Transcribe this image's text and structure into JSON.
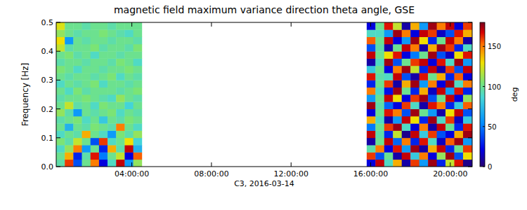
{
  "chart_data": {
    "type": "heatmap",
    "title": "magnetic field maximum variance direction theta angle, GSE",
    "x_label": "C3, 2016-03-14",
    "y_label": "Frequency [Hz]",
    "xlim": [
      0.2,
      21.1
    ],
    "ylim": [
      0,
      0.5
    ],
    "xticks": [
      {
        "value": 4,
        "label": "04:00:00"
      },
      {
        "value": 8,
        "label": "08:00:00"
      },
      {
        "value": 12,
        "label": "12:00:00"
      },
      {
        "value": 16,
        "label": "16:00:00"
      },
      {
        "value": 20,
        "label": "20:00:00"
      }
    ],
    "yticks": [
      {
        "value": 0,
        "label": "0.0"
      },
      {
        "value": 0.1,
        "label": "0.1"
      },
      {
        "value": 0.2,
        "label": "0.2"
      },
      {
        "value": 0.3,
        "label": "0.3"
      },
      {
        "value": 0.4,
        "label": "0.4"
      },
      {
        "value": 0.5,
        "label": "0.5"
      }
    ],
    "y_edges": [
      0,
      0.025,
      0.05,
      0.075,
      0.1,
      0.125,
      0.15,
      0.175,
      0.2,
      0.225,
      0.25,
      0.275,
      0.3,
      0.325,
      0.35,
      0.375,
      0.4,
      0.425,
      0.45,
      0.475,
      0.5
    ],
    "segments": [
      {
        "x_edges": [
          0.2,
          0.63,
          1.06,
          1.49,
          1.92,
          2.35,
          2.78,
          3.21,
          3.64,
          4.07,
          4.5
        ],
        "values": [
          [
            95,
            160,
            40,
            100,
            150,
            20,
            90,
            170,
            60,
            110
          ],
          [
            100,
            140,
            30,
            95,
            165,
            50,
            100,
            120,
            20,
            155
          ],
          [
            90,
            110,
            150,
            60,
            100,
            30,
            140,
            95,
            170,
            70
          ],
          [
            105,
            95,
            120,
            100,
            40,
            160,
            90,
            100,
            130,
            85
          ],
          [
            90,
            100,
            95,
            140,
            100,
            90,
            60,
            105,
            95,
            110
          ],
          [
            100,
            70,
            100,
            95,
            105,
            100,
            95,
            150,
            100,
            90
          ],
          [
            95,
            100,
            105,
            90,
            100,
            80,
            100,
            95,
            105,
            100
          ],
          [
            110,
            95,
            60,
            100,
            95,
            100,
            105,
            90,
            100,
            95
          ],
          [
            100,
            120,
            95,
            100,
            90,
            105,
            100,
            100,
            85,
            100
          ],
          [
            95,
            100,
            100,
            105,
            100,
            95,
            90,
            110,
            100,
            95
          ],
          [
            100,
            90,
            105,
            95,
            100,
            100,
            100,
            95,
            100,
            105
          ],
          [
            90,
            100,
            95,
            100,
            105,
            90,
            100,
            100,
            95,
            100
          ],
          [
            100,
            95,
            100,
            100,
            95,
            100,
            105,
            90,
            100,
            95
          ],
          [
            105,
            100,
            90,
            100,
            100,
            95,
            100,
            100,
            105,
            100
          ],
          [
            95,
            100,
            100,
            95,
            100,
            100,
            95,
            105,
            100,
            90
          ],
          [
            100,
            105,
            95,
            100,
            90,
            100,
            100,
            95,
            100,
            100
          ],
          [
            120,
            95,
            100,
            100,
            105,
            95,
            100,
            100,
            95,
            105
          ],
          [
            130,
            60,
            100,
            95,
            100,
            100,
            95,
            100,
            100,
            95
          ],
          [
            110,
            100,
            95,
            100,
            100,
            105,
            100,
            95,
            90,
            100
          ],
          [
            125,
            100,
            100,
            95,
            100,
            100,
            95,
            100,
            100,
            100
          ]
        ]
      },
      {
        "x_edges": [
          15.8,
          16.24,
          16.68,
          17.12,
          17.56,
          18.0,
          18.44,
          18.88,
          19.32,
          19.76,
          20.2,
          20.64,
          21.1
        ],
        "values": [
          [
            20,
            170,
            90,
            140,
            10,
            160,
            60,
            175,
            30,
            120,
            165,
            5
          ],
          [
            160,
            40,
            100,
            10,
            170,
            80,
            150,
            20,
            110,
            175,
            40,
            130
          ],
          [
            95,
            150,
            20,
            165,
            60,
            175,
            10,
            140,
            170,
            30,
            100,
            160
          ],
          [
            10,
            100,
            170,
            45,
            150,
            30,
            165,
            90,
            15,
            155,
            175,
            60
          ],
          [
            170,
            95,
            30,
            120,
            5,
            170,
            80,
            160,
            40,
            20,
            140,
            175
          ],
          [
            50,
            100,
            160,
            175,
            90,
            20,
            150,
            10,
            170,
            100,
            30,
            165
          ],
          [
            140,
            90,
            10,
            60,
            170,
            130,
            30,
            175,
            90,
            160,
            15,
            80
          ],
          [
            20,
            100,
            165,
            150,
            40,
            175,
            100,
            60,
            10,
            130,
            170,
            40
          ],
          [
            175,
            95,
            45,
            20,
            160,
            90,
            10,
            165,
            150,
            30,
            80,
            155
          ],
          [
            60,
            100,
            170,
            130,
            20,
            160,
            175,
            40,
            100,
            170,
            20,
            110
          ],
          [
            150,
            90,
            25,
            175,
            100,
            30,
            140,
            15,
            170,
            60,
            165,
            30
          ],
          [
            30,
            100,
            160,
            10,
            140,
            175,
            60,
            150,
            20,
            175,
            90,
            150
          ],
          [
            165,
            95,
            90,
            170,
            40,
            10,
            165,
            100,
            140,
            30,
            155,
            20
          ],
          [
            80,
            100,
            20,
            150,
            175,
            120,
            30,
            170,
            10,
            160,
            40,
            170
          ],
          [
            10,
            90,
            175,
            40,
            100,
            160,
            170,
            20,
            165,
            90,
            175,
            60
          ],
          [
            170,
            100,
            130,
            165,
            20,
            50,
            100,
            175,
            40,
            15,
            130,
            165
          ],
          [
            40,
            95,
            10,
            100,
            170,
            150,
            10,
            140,
            175,
            160,
            30,
            90
          ],
          [
            155,
            100,
            170,
            20,
            60,
            175,
            130,
            30,
            100,
            170,
            150,
            10
          ],
          [
            90,
            90,
            60,
            175,
            150,
            20,
            170,
            160,
            15,
            40,
            165,
            140
          ],
          [
            20,
            100,
            165,
            120,
            10,
            140,
            60,
            175,
            150,
            170,
            20,
            160
          ]
        ]
      }
    ],
    "colorbar": {
      "label": "deg",
      "range": [
        0,
        180
      ],
      "ticks": [
        0,
        50,
        100,
        150
      ]
    }
  }
}
